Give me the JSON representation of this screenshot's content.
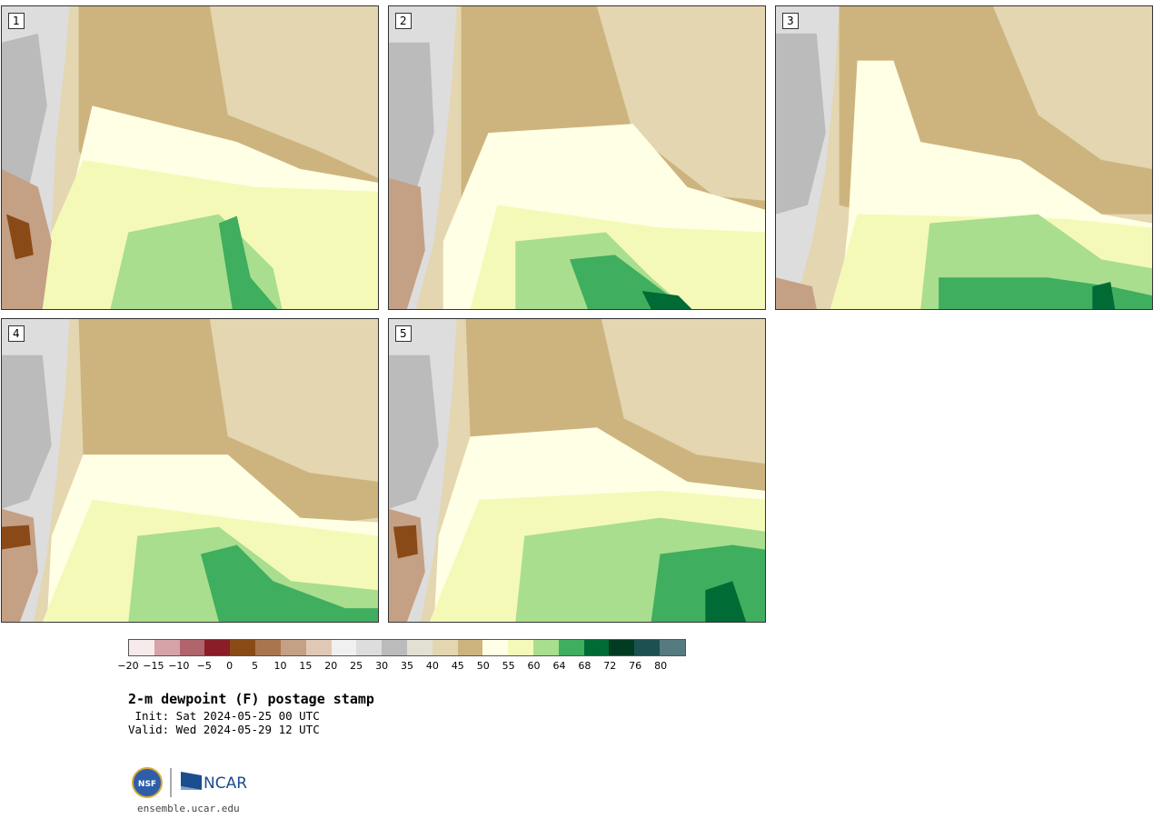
{
  "panels": [
    {
      "label": "1"
    },
    {
      "label": "2"
    },
    {
      "label": "3"
    },
    {
      "label": "4"
    },
    {
      "label": "5"
    }
  ],
  "colorbar": {
    "colors": [
      "#f6eaeb",
      "#d5a3a8",
      "#b0646b",
      "#8a1d28",
      "#8a4a17",
      "#a9754e",
      "#c4a085",
      "#e0c8b6",
      "#f0f0f0",
      "#dddddd",
      "#bbbbbb",
      "#e1e0d2",
      "#e3d6b0",
      "#cdb47e",
      "#feffe4",
      "#f4f9b8",
      "#a8de8e",
      "#3fae5e",
      "#006b35",
      "#003b22",
      "#1d5050",
      "#557a7f"
    ],
    "tick_labels": [
      "−20",
      "−15",
      "−10",
      "−5",
      "0",
      "5",
      "10",
      "15",
      "20",
      "25",
      "30",
      "35",
      "40",
      "45",
      "50",
      "55",
      "60",
      "64",
      "68",
      "72",
      "76",
      "80"
    ]
  },
  "title": "2-m dewpoint (F) postage stamp",
  "init_line": " Init: Sat 2024-05-25 00 UTC",
  "valid_line": "Valid: Wed 2024-05-29 12 UTC",
  "logo": {
    "nsf_text": "NSF",
    "ncar_text": "NCAR"
  },
  "site": "ensemble.ucar.edu"
}
